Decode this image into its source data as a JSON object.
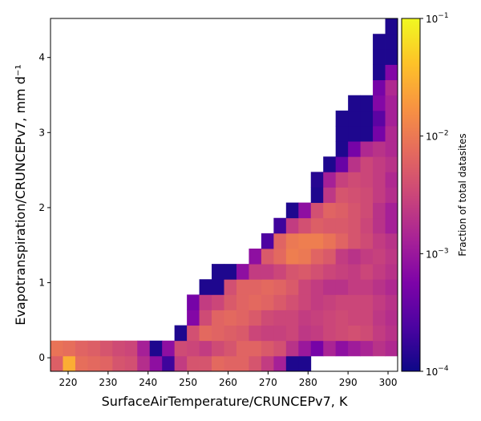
{
  "chart_data": {
    "type": "heatmap",
    "title": "",
    "xlabel": "SurfaceAirTemperature/CRUNCEPv7,  K",
    "ylabel": "Evapotranspiration/CRUNCEPv7,  mm d⁻¹",
    "colorbar_label": "Fraction of total datasites",
    "colormap": "plasma",
    "color_scale": "log",
    "color_range": [
      0.0001,
      0.1
    ],
    "xlim": [
      215.6,
      302.4
    ],
    "ylim": [
      -0.18,
      4.52
    ],
    "x_bin_edges_start": 215.6,
    "x_bin_width": 3.1,
    "y_bin_edges_start": -0.18,
    "y_bin_width": 0.2043,
    "x_ticks": [
      220,
      230,
      240,
      250,
      260,
      270,
      280,
      290,
      300
    ],
    "x_tick_labels": [
      "220",
      "230",
      "240",
      "250",
      "260",
      "270",
      "280",
      "290",
      "300"
    ],
    "y_ticks": [
      0,
      1,
      2,
      3,
      4
    ],
    "y_tick_labels": [
      "0",
      "1",
      "2",
      "3",
      "4"
    ],
    "colorbar_ticks": [
      0.0001,
      0.001,
      0.01,
      0.1
    ],
    "colorbar_tick_labels": [
      "10",
      "10",
      "10",
      "10"
    ],
    "colorbar_tick_exponents": [
      "−4",
      "−3",
      "−2",
      "−1"
    ],
    "grid": false,
    "rows_note": "cells[i] lists the log10 fraction for y-bin i (i=0 is the bottom row), one entry per x-bin from left to right; null = empty",
    "cells": [
      [
        -2.25,
        -1.55,
        -2.1,
        -2.15,
        -2.2,
        -2.35,
        -2.4,
        -2.75,
        -3.1,
        -3.7,
        -2.6,
        -2.35,
        -2.35,
        -2.15,
        -2.2,
        -2.2,
        -2.35,
        -2.6,
        -2.9,
        -3.9,
        -3.9,
        null,
        null,
        null,
        null,
        null,
        null,
        null,
        -3.9,
        -2.5,
        -2.3
      ],
      [
        -2.05,
        -2.1,
        -2.2,
        -2.25,
        -2.35,
        -2.45,
        -2.5,
        -2.9,
        -3.9,
        -3.1,
        -2.45,
        -2.5,
        -2.6,
        -2.45,
        -2.35,
        -2.2,
        -2.2,
        -2.3,
        -2.4,
        -2.7,
        -3.0,
        -3.3,
        -2.85,
        -3.1,
        -2.95,
        -2.85,
        -2.7,
        -2.8,
        -2.5,
        -2.55,
        -2.3
      ],
      [
        null,
        null,
        null,
        null,
        null,
        null,
        null,
        null,
        null,
        null,
        null,
        null,
        null,
        null,
        null,
        null,
        null,
        null,
        null,
        null,
        null,
        null,
        null,
        null,
        null,
        null,
        null,
        null,
        null,
        null,
        null
      ],
      [
        null,
        null,
        null,
        null,
        null,
        null,
        null,
        null,
        null,
        null,
        null,
        null,
        null,
        null,
        null,
        null,
        null,
        null,
        null,
        null,
        null,
        null,
        null,
        null,
        null,
        null,
        null,
        null,
        null,
        null,
        null
      ],
      [
        null,
        null,
        null,
        null,
        null,
        null,
        null,
        null,
        null,
        null,
        null,
        null,
        null,
        null,
        null,
        null,
        null,
        null,
        null,
        null,
        null,
        null,
        null,
        null,
        null,
        null,
        null,
        null,
        null,
        null,
        null
      ],
      [
        null,
        null,
        null,
        null,
        null,
        null,
        null,
        null,
        null,
        null,
        null,
        null,
        null,
        null,
        null,
        null,
        null,
        null,
        null,
        null,
        null,
        null,
        null,
        null,
        null,
        null,
        null,
        null,
        null,
        null,
        null
      ],
      [
        null,
        null,
        null,
        null,
        null,
        null,
        null,
        null,
        null,
        null,
        null,
        null,
        null,
        null,
        null,
        null,
        null,
        null,
        null,
        null,
        null,
        null,
        null,
        null,
        null,
        null,
        null,
        null,
        null,
        null,
        null
      ],
      [
        null,
        null,
        null,
        null,
        null,
        null,
        null,
        null,
        null,
        null,
        null,
        null,
        null,
        null,
        null,
        null,
        null,
        null,
        null,
        null,
        null,
        null,
        null,
        null,
        null,
        null,
        null,
        null,
        null,
        null,
        null
      ],
      [
        null,
        null,
        null,
        null,
        null,
        null,
        null,
        null,
        null,
        null,
        null,
        null,
        null,
        null,
        null,
        null,
        null,
        null,
        null,
        null,
        null,
        null,
        null,
        null,
        null,
        null,
        null,
        null,
        null,
        null,
        null
      ],
      [
        null,
        null,
        null,
        null,
        null,
        null,
        null,
        null,
        null,
        null,
        null,
        null,
        null,
        null,
        null,
        null,
        null,
        null,
        null,
        null,
        null,
        null,
        null,
        null,
        null,
        null,
        null,
        null,
        null,
        null,
        null
      ],
      [
        null,
        null,
        null,
        null,
        null,
        null,
        null,
        null,
        null,
        null,
        null,
        null,
        null,
        null,
        null,
        null,
        null,
        null,
        null,
        null,
        null,
        null,
        null,
        null,
        null,
        null,
        null,
        null,
        null,
        null,
        null
      ],
      [
        null,
        null,
        null,
        null,
        null,
        null,
        null,
        null,
        null,
        null,
        null,
        null,
        null,
        null,
        null,
        null,
        null,
        null,
        null,
        null,
        null,
        null,
        null,
        null,
        null,
        null,
        null,
        null,
        null,
        null,
        null
      ],
      [
        null,
        null,
        null,
        null,
        null,
        null,
        null,
        null,
        null,
        null,
        null,
        null,
        null,
        null,
        null,
        null,
        null,
        null,
        null,
        null,
        null,
        null,
        null,
        null,
        null,
        null,
        null,
        null,
        null,
        null,
        null
      ],
      [
        null,
        null,
        null,
        null,
        null,
        null,
        null,
        null,
        null,
        null,
        null,
        null,
        null,
        null,
        null,
        null,
        null,
        null,
        null,
        null,
        null,
        null,
        null,
        null,
        null,
        null,
        null,
        null,
        null,
        null,
        null
      ],
      [
        null,
        null,
        null,
        null,
        null,
        null,
        null,
        null,
        null,
        null,
        null,
        null,
        null,
        null,
        null,
        null,
        null,
        null,
        null,
        null,
        null,
        null,
        null,
        null,
        null,
        null,
        null,
        null,
        null,
        null,
        null
      ],
      [
        null,
        null,
        null,
        null,
        null,
        null,
        null,
        null,
        null,
        null,
        null,
        null,
        null,
        null,
        null,
        null,
        null,
        null,
        null,
        null,
        null,
        null,
        null,
        null,
        null,
        null,
        null,
        null,
        null,
        null,
        null
      ],
      [
        null,
        null,
        null,
        null,
        null,
        null,
        null,
        null,
        null,
        null,
        null,
        null,
        null,
        null,
        null,
        null,
        null,
        null,
        null,
        null,
        null,
        null,
        null,
        null,
        null,
        null,
        null,
        null,
        null,
        null,
        null
      ],
      [
        null,
        null,
        null,
        null,
        null,
        null,
        null,
        null,
        null,
        null,
        null,
        null,
        null,
        null,
        null,
        null,
        null,
        null,
        null,
        null,
        null,
        null,
        null,
        null,
        null,
        null,
        null,
        null,
        null,
        null,
        null
      ],
      [
        null,
        null,
        null,
        null,
        null,
        null,
        null,
        null,
        null,
        null,
        null,
        null,
        null,
        null,
        null,
        null,
        null,
        null,
        null,
        null,
        null,
        null,
        null,
        null,
        null,
        null,
        null,
        null,
        null,
        null,
        null
      ],
      [
        null,
        null,
        null,
        null,
        null,
        null,
        null,
        null,
        null,
        null,
        null,
        null,
        null,
        null,
        null,
        null,
        null,
        null,
        null,
        null,
        null,
        null,
        null,
        null,
        null,
        null,
        null,
        null,
        null,
        null,
        null
      ],
      [
        null,
        null,
        null,
        null,
        null,
        null,
        null,
        null,
        null,
        null,
        null,
        null,
        null,
        null,
        null,
        null,
        null,
        null,
        null,
        null,
        null,
        null,
        null,
        null,
        null,
        null,
        null,
        null,
        null,
        null,
        null
      ],
      [
        null,
        null,
        null,
        null,
        null,
        null,
        null,
        null,
        null,
        null,
        null,
        null,
        null,
        null,
        null,
        null,
        null,
        null,
        null,
        null,
        null,
        null,
        null,
        null,
        null,
        null,
        null,
        null,
        null,
        null,
        null
      ],
      [
        null,
        null,
        null,
        null,
        null,
        null,
        null,
        null,
        null,
        null,
        null,
        null,
        null,
        null,
        null,
        null,
        null,
        null,
        null,
        null,
        null,
        null,
        null,
        null,
        null,
        null,
        null,
        null,
        null,
        null,
        null
      ]
    ],
    "upper_rows": [
      {
        "row": 2,
        "start": 10,
        "values": [
          -3.9,
          -2.4,
          -2.15,
          -2.2,
          -2.25,
          -2.3,
          -2.5,
          -2.55,
          -2.55,
          -2.5,
          -2.65,
          -2.6,
          -2.5,
          -2.45,
          -2.4,
          -2.45,
          -2.6,
          -2.7,
          -2.85,
          -2.95,
          -3.3
        ]
      },
      {
        "row": 3,
        "start": 11,
        "values": [
          -3.2,
          -2.45,
          -2.2,
          -2.15,
          -2.2,
          -2.3,
          -2.45,
          -2.5,
          -2.5,
          -2.6,
          -2.55,
          -2.5,
          -2.45,
          -2.5,
          -2.5,
          -2.65,
          -2.75,
          -2.95,
          -3.2,
          -3.3
        ]
      },
      {
        "row": 4,
        "start": 11,
        "values": [
          -3.3,
          -2.6,
          -2.5,
          -2.3,
          -2.2,
          -2.15,
          -2.2,
          -2.3,
          -2.4,
          -2.5,
          -2.6,
          -2.55,
          -2.5,
          -2.5,
          -2.5,
          -2.6,
          -2.7,
          -2.85,
          -3.0,
          -3.25
        ]
      },
      {
        "row": 5,
        "start": 12,
        "values": [
          -3.9,
          -3.9,
          -2.4,
          -2.2,
          -2.2,
          -2.15,
          -2.2,
          -2.3,
          -2.5,
          -2.6,
          -2.7,
          -2.7,
          -2.6,
          -2.6,
          -2.7,
          -2.8,
          -3.0,
          -3.2,
          -3.2
        ]
      },
      {
        "row": 6,
        "start": 13,
        "values": [
          -3.9,
          -3.9,
          -3.1,
          -2.6,
          -2.6,
          -2.5,
          -2.35,
          -2.3,
          -2.4,
          -2.5,
          -2.55,
          -2.6,
          -2.5,
          -2.6,
          -2.7,
          -2.9,
          -3.1,
          -3.15
        ]
      },
      {
        "row": 7,
        "start": 16,
        "values": [
          -3.1,
          -2.3,
          -2.15,
          -1.95,
          -2.0,
          -2.2,
          -2.3,
          -2.6,
          -2.7,
          -2.6,
          -2.55,
          -2.65,
          -2.8,
          -3.0,
          -3.05
        ]
      },
      {
        "row": 8,
        "start": 17,
        "values": [
          -3.6,
          -2.2,
          -2.0,
          -1.95,
          -1.95,
          -2.05,
          -2.2,
          -2.35,
          -2.45,
          -2.6,
          -2.7,
          -2.8,
          -2.9,
          -3.0
        ]
      },
      {
        "row": 9,
        "start": 18,
        "values": [
          -3.7,
          -2.6,
          -2.4,
          -2.25,
          -2.3,
          -2.3,
          -2.35,
          -2.5,
          -2.7,
          -2.9,
          -3.0,
          -3.0,
          -2.9
        ]
      },
      {
        "row": 10,
        "start": 19,
        "values": [
          -3.9,
          -3.1,
          -2.4,
          -2.2,
          -2.25,
          -2.35,
          -2.45,
          -2.7,
          -2.9,
          -3.3,
          -3.0,
          -2.8
        ]
      },
      {
        "row": 11,
        "start": 21,
        "values": [
          -3.9,
          -2.65,
          -2.35,
          -2.4,
          -2.45,
          -2.6,
          -2.75,
          -3.1,
          -3.0,
          -2.75
        ]
      },
      {
        "row": 12,
        "start": 21,
        "values": [
          -3.85,
          -2.9,
          -2.55,
          -2.45,
          -2.5,
          -2.6,
          -2.8,
          -2.95,
          -2.85,
          -2.6
        ]
      },
      {
        "row": 13,
        "start": 22,
        "values": [
          -3.9,
          -3.4,
          -2.7,
          -2.5,
          -2.6,
          -2.7,
          -2.9,
          -2.85,
          -2.55
        ]
      },
      {
        "row": 14,
        "start": 23,
        "values": [
          -3.9,
          -3.3,
          -2.8,
          -2.7,
          -2.8,
          -2.9,
          -2.8,
          -2.5
        ]
      },
      {
        "row": 15,
        "start": 23,
        "values": [
          -3.9,
          -3.9,
          -3.9,
          -3.3,
          -2.8,
          -2.8,
          -2.7,
          -2.5
        ]
      },
      {
        "row": 16,
        "start": 23,
        "values": [
          -3.9,
          -3.9,
          -3.9,
          -3.5,
          -2.9,
          -2.8,
          -2.65,
          -2.5
        ]
      },
      {
        "row": 17,
        "start": 24,
        "values": [
          -3.9,
          -3.9,
          -3.2,
          -2.9,
          -2.7,
          -2.65,
          -2.5
        ]
      },
      {
        "row": 18,
        "start": 26,
        "values": [
          -3.3,
          -2.8,
          -2.7,
          -2.55,
          -2.5
        ]
      },
      {
        "row": 19,
        "start": 26,
        "values": [
          -3.9,
          -3.2,
          -2.6,
          -2.5,
          -2.45
        ]
      },
      {
        "row": 20,
        "start": 26,
        "values": [
          -3.9,
          -3.9,
          -2.8,
          -2.5,
          -2.35
        ]
      },
      {
        "row": 21,
        "start": 26,
        "values": [
          -3.9,
          -3.9,
          -3.0,
          -2.6,
          -2.5
        ]
      },
      {
        "row": 22,
        "start": 27,
        "values": [
          -3.9,
          -2.7,
          -2.5
        ]
      }
    ]
  }
}
